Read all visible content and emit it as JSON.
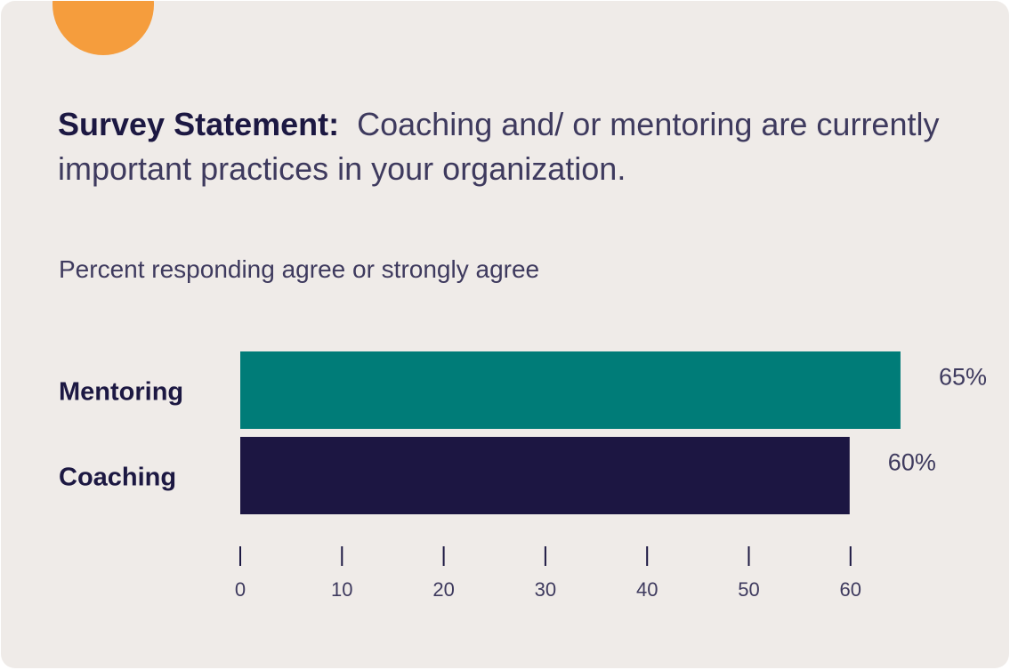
{
  "header": {
    "statement_lead": "Survey Statement:",
    "statement_text": "Coaching and/ or mentoring are currently important practices in your organization."
  },
  "colors": {
    "card_background": "#efebe8",
    "accent": "#f59d3d",
    "mentoring_bar": "#007c78",
    "coaching_bar": "#1c1642",
    "text_dark": "#1c1842",
    "text_muted": "#3e3a5e"
  },
  "icons": {
    "accent_shape": "orange-circle"
  },
  "chart_data": {
    "type": "bar",
    "orientation": "horizontal",
    "subtitle": "Percent responding agree or strongly agree",
    "categories": [
      "Mentoring",
      "Coaching"
    ],
    "values": [
      65,
      60
    ],
    "value_labels": [
      "65%",
      "60%"
    ],
    "bar_colors": [
      "#007c78",
      "#1c1642"
    ],
    "xlim": [
      0,
      60
    ],
    "xticks": [
      0,
      10,
      20,
      30,
      40,
      50,
      60
    ],
    "xtick_labels": [
      "0",
      "10",
      "20",
      "30",
      "40",
      "50",
      "60"
    ],
    "grid": false,
    "legend": "none"
  }
}
